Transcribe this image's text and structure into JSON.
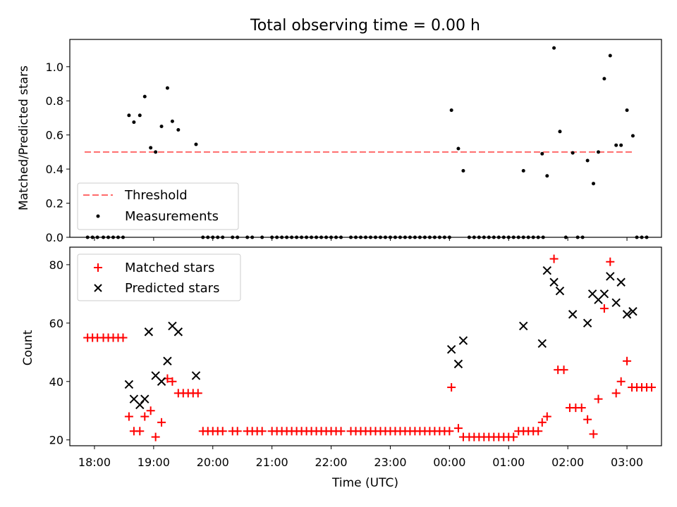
{
  "chart_data": [
    {
      "type": "scatter",
      "title": "Total observing time = 0.00 h",
      "ylabel": "Matched/Predicted stars",
      "xlim": [
        "17:35",
        "03:35"
      ],
      "ylim": [
        0,
        1.16
      ],
      "yticks": [
        "0.0",
        "0.2",
        "0.4",
        "0.6",
        "0.8",
        "1.0"
      ],
      "grid": false,
      "legend_position": "lower-left",
      "threshold": {
        "name": "Threshold",
        "value": 0.5,
        "x_start": "17:50",
        "x_end": "03:05",
        "color": "#ff6b6b"
      },
      "series": [
        {
          "name": "Measurements",
          "color": "#000000",
          "points": [
            [
              "17:53",
              0
            ],
            [
              "17:58",
              0
            ],
            [
              "18:03",
              0
            ],
            [
              "18:09",
              0
            ],
            [
              "18:14",
              0
            ],
            [
              "18:19",
              0
            ],
            [
              "18:24",
              0
            ],
            [
              "18:29",
              0
            ],
            [
              "18:35",
              0.715
            ],
            [
              "18:40",
              0.675
            ],
            [
              "18:46",
              0.715
            ],
            [
              "18:51",
              0.825
            ],
            [
              "18:57",
              0.525
            ],
            [
              "19:02",
              0.5
            ],
            [
              "19:08",
              0.65
            ],
            [
              "19:14",
              0.875
            ],
            [
              "19:19",
              0.68
            ],
            [
              "19:25",
              0.63
            ],
            [
              "19:43",
              0.545
            ],
            [
              "19:50",
              0
            ],
            [
              "19:55",
              0
            ],
            [
              "20:00",
              0
            ],
            [
              "20:05",
              0
            ],
            [
              "20:10",
              0
            ],
            [
              "20:20",
              0
            ],
            [
              "20:25",
              0
            ],
            [
              "20:35",
              0
            ],
            [
              "20:40",
              0
            ],
            [
              "20:50",
              0
            ],
            [
              "21:00",
              0
            ],
            [
              "21:05",
              0
            ],
            [
              "21:10",
              0
            ],
            [
              "21:15",
              0
            ],
            [
              "21:20",
              0
            ],
            [
              "21:25",
              0
            ],
            [
              "21:30",
              0
            ],
            [
              "21:35",
              0
            ],
            [
              "21:40",
              0
            ],
            [
              "21:45",
              0
            ],
            [
              "21:50",
              0
            ],
            [
              "21:55",
              0
            ],
            [
              "22:00",
              0
            ],
            [
              "22:05",
              0
            ],
            [
              "22:10",
              0
            ],
            [
              "22:20",
              0
            ],
            [
              "22:25",
              0
            ],
            [
              "22:30",
              0
            ],
            [
              "22:35",
              0
            ],
            [
              "22:40",
              0
            ],
            [
              "22:45",
              0
            ],
            [
              "22:50",
              0
            ],
            [
              "22:55",
              0
            ],
            [
              "23:00",
              0
            ],
            [
              "23:05",
              0
            ],
            [
              "23:10",
              0
            ],
            [
              "23:15",
              0
            ],
            [
              "23:20",
              0
            ],
            [
              "23:25",
              0
            ],
            [
              "23:30",
              0
            ],
            [
              "23:35",
              0
            ],
            [
              "23:40",
              0
            ],
            [
              "23:45",
              0
            ],
            [
              "23:50",
              0
            ],
            [
              "23:55",
              0
            ],
            [
              "00:00",
              0
            ],
            [
              "00:02",
              0.745
            ],
            [
              "00:09",
              0.52
            ],
            [
              "00:14",
              0.39
            ],
            [
              "00:20",
              0
            ],
            [
              "00:25",
              0
            ],
            [
              "00:30",
              0
            ],
            [
              "00:35",
              0
            ],
            [
              "00:40",
              0
            ],
            [
              "00:45",
              0
            ],
            [
              "00:50",
              0
            ],
            [
              "00:55",
              0
            ],
            [
              "01:00",
              0
            ],
            [
              "01:05",
              0
            ],
            [
              "01:10",
              0
            ],
            [
              "01:15",
              0
            ],
            [
              "01:20",
              0
            ],
            [
              "01:25",
              0
            ],
            [
              "01:30",
              0
            ],
            [
              "01:35",
              0
            ],
            [
              "01:15",
              0.39
            ],
            [
              "01:34",
              0.49
            ],
            [
              "01:39",
              0.36
            ],
            [
              "01:46",
              1.11
            ],
            [
              "01:52",
              0.62
            ],
            [
              "02:05",
              0.495
            ],
            [
              "02:20",
              0.45
            ],
            [
              "02:26",
              0.315
            ],
            [
              "02:31",
              0.5
            ],
            [
              "02:37",
              0.93
            ],
            [
              "02:43",
              1.065
            ],
            [
              "02:49",
              0.54
            ],
            [
              "02:54",
              0.54
            ],
            [
              "03:00",
              0.745
            ],
            [
              "03:06",
              0.595
            ],
            [
              "01:58",
              0
            ],
            [
              "02:10",
              0
            ],
            [
              "02:15",
              0
            ],
            [
              "03:10",
              0
            ],
            [
              "03:15",
              0
            ],
            [
              "03:20",
              0
            ]
          ]
        }
      ]
    },
    {
      "type": "scatter",
      "xlabel": "Time (UTC)",
      "ylabel": "Count",
      "xlim": [
        "17:35",
        "03:35"
      ],
      "ylim": [
        18,
        86
      ],
      "yticks": [
        "20",
        "40",
        "60",
        "80"
      ],
      "xticks": [
        "18:00",
        "19:00",
        "20:00",
        "21:00",
        "22:00",
        "23:00",
        "00:00",
        "01:00",
        "02:00",
        "03:00"
      ],
      "grid": false,
      "legend_position": "upper-left",
      "series": [
        {
          "name": "Matched stars",
          "color": "#ff0000",
          "marker": "+",
          "points": [
            [
              "17:53",
              55
            ],
            [
              "17:58",
              55
            ],
            [
              "18:03",
              55
            ],
            [
              "18:09",
              55
            ],
            [
              "18:14",
              55
            ],
            [
              "18:19",
              55
            ],
            [
              "18:24",
              55
            ],
            [
              "18:29",
              55
            ],
            [
              "18:35",
              28
            ],
            [
              "18:40",
              23
            ],
            [
              "18:46",
              23
            ],
            [
              "18:51",
              28
            ],
            [
              "18:57",
              30
            ],
            [
              "19:02",
              21
            ],
            [
              "19:08",
              26
            ],
            [
              "19:14",
              41
            ],
            [
              "19:19",
              40
            ],
            [
              "19:25",
              36
            ],
            [
              "19:30",
              36
            ],
            [
              "19:35",
              36
            ],
            [
              "19:40",
              36
            ],
            [
              "19:45",
              36
            ],
            [
              "19:50",
              23
            ],
            [
              "19:55",
              23
            ],
            [
              "20:00",
              23
            ],
            [
              "20:05",
              23
            ],
            [
              "20:10",
              23
            ],
            [
              "20:20",
              23
            ],
            [
              "20:25",
              23
            ],
            [
              "20:35",
              23
            ],
            [
              "20:40",
              23
            ],
            [
              "20:45",
              23
            ],
            [
              "20:50",
              23
            ],
            [
              "21:00",
              23
            ],
            [
              "21:05",
              23
            ],
            [
              "21:10",
              23
            ],
            [
              "21:15",
              23
            ],
            [
              "21:20",
              23
            ],
            [
              "21:25",
              23
            ],
            [
              "21:30",
              23
            ],
            [
              "21:35",
              23
            ],
            [
              "21:40",
              23
            ],
            [
              "21:45",
              23
            ],
            [
              "21:50",
              23
            ],
            [
              "21:55",
              23
            ],
            [
              "22:00",
              23
            ],
            [
              "22:05",
              23
            ],
            [
              "22:10",
              23
            ],
            [
              "22:20",
              23
            ],
            [
              "22:25",
              23
            ],
            [
              "22:30",
              23
            ],
            [
              "22:35",
              23
            ],
            [
              "22:40",
              23
            ],
            [
              "22:45",
              23
            ],
            [
              "22:50",
              23
            ],
            [
              "22:55",
              23
            ],
            [
              "23:00",
              23
            ],
            [
              "23:05",
              23
            ],
            [
              "23:10",
              23
            ],
            [
              "23:15",
              23
            ],
            [
              "23:20",
              23
            ],
            [
              "23:25",
              23
            ],
            [
              "23:30",
              23
            ],
            [
              "23:35",
              23
            ],
            [
              "23:40",
              23
            ],
            [
              "23:45",
              23
            ],
            [
              "23:50",
              23
            ],
            [
              "23:55",
              23
            ],
            [
              "00:00",
              23
            ],
            [
              "00:02",
              38
            ],
            [
              "00:09",
              24
            ],
            [
              "00:14",
              21
            ],
            [
              "00:20",
              21
            ],
            [
              "00:25",
              21
            ],
            [
              "00:30",
              21
            ],
            [
              "00:35",
              21
            ],
            [
              "00:40",
              21
            ],
            [
              "00:45",
              21
            ],
            [
              "00:50",
              21
            ],
            [
              "00:55",
              21
            ],
            [
              "01:00",
              21
            ],
            [
              "01:05",
              21
            ],
            [
              "01:10",
              23
            ],
            [
              "01:15",
              23
            ],
            [
              "01:20",
              23
            ],
            [
              "01:25",
              23
            ],
            [
              "01:30",
              23
            ],
            [
              "01:34",
              26
            ],
            [
              "01:39",
              28
            ],
            [
              "01:46",
              82
            ],
            [
              "01:50",
              44
            ],
            [
              "01:56",
              44
            ],
            [
              "02:02",
              31
            ],
            [
              "02:08",
              31
            ],
            [
              "02:14",
              31
            ],
            [
              "02:20",
              27
            ],
            [
              "02:26",
              22
            ],
            [
              "02:31",
              34
            ],
            [
              "02:37",
              65
            ],
            [
              "02:43",
              81
            ],
            [
              "02:49",
              36
            ],
            [
              "02:54",
              40
            ],
            [
              "03:00",
              47
            ],
            [
              "03:05",
              38
            ],
            [
              "03:10",
              38
            ],
            [
              "03:15",
              38
            ],
            [
              "03:20",
              38
            ],
            [
              "03:25",
              38
            ]
          ]
        },
        {
          "name": "Predicted stars",
          "color": "#000000",
          "marker": "x",
          "points": [
            [
              "18:35",
              39
            ],
            [
              "18:40",
              34
            ],
            [
              "18:46",
              32
            ],
            [
              "18:51",
              34
            ],
            [
              "18:55",
              57
            ],
            [
              "19:02",
              42
            ],
            [
              "19:08",
              40
            ],
            [
              "19:14",
              47
            ],
            [
              "19:19",
              59
            ],
            [
              "19:25",
              57
            ],
            [
              "19:43",
              42
            ],
            [
              "00:02",
              51
            ],
            [
              "00:09",
              46
            ],
            [
              "00:14",
              54
            ],
            [
              "01:15",
              59
            ],
            [
              "01:34",
              53
            ],
            [
              "01:39",
              78
            ],
            [
              "01:46",
              74
            ],
            [
              "01:52",
              71
            ],
            [
              "02:05",
              63
            ],
            [
              "02:20",
              60
            ],
            [
              "02:25",
              70
            ],
            [
              "02:31",
              68
            ],
            [
              "02:37",
              70
            ],
            [
              "02:43",
              76
            ],
            [
              "02:49",
              67
            ],
            [
              "02:54",
              74
            ],
            [
              "03:00",
              63
            ],
            [
              "03:06",
              64
            ]
          ]
        }
      ]
    }
  ]
}
